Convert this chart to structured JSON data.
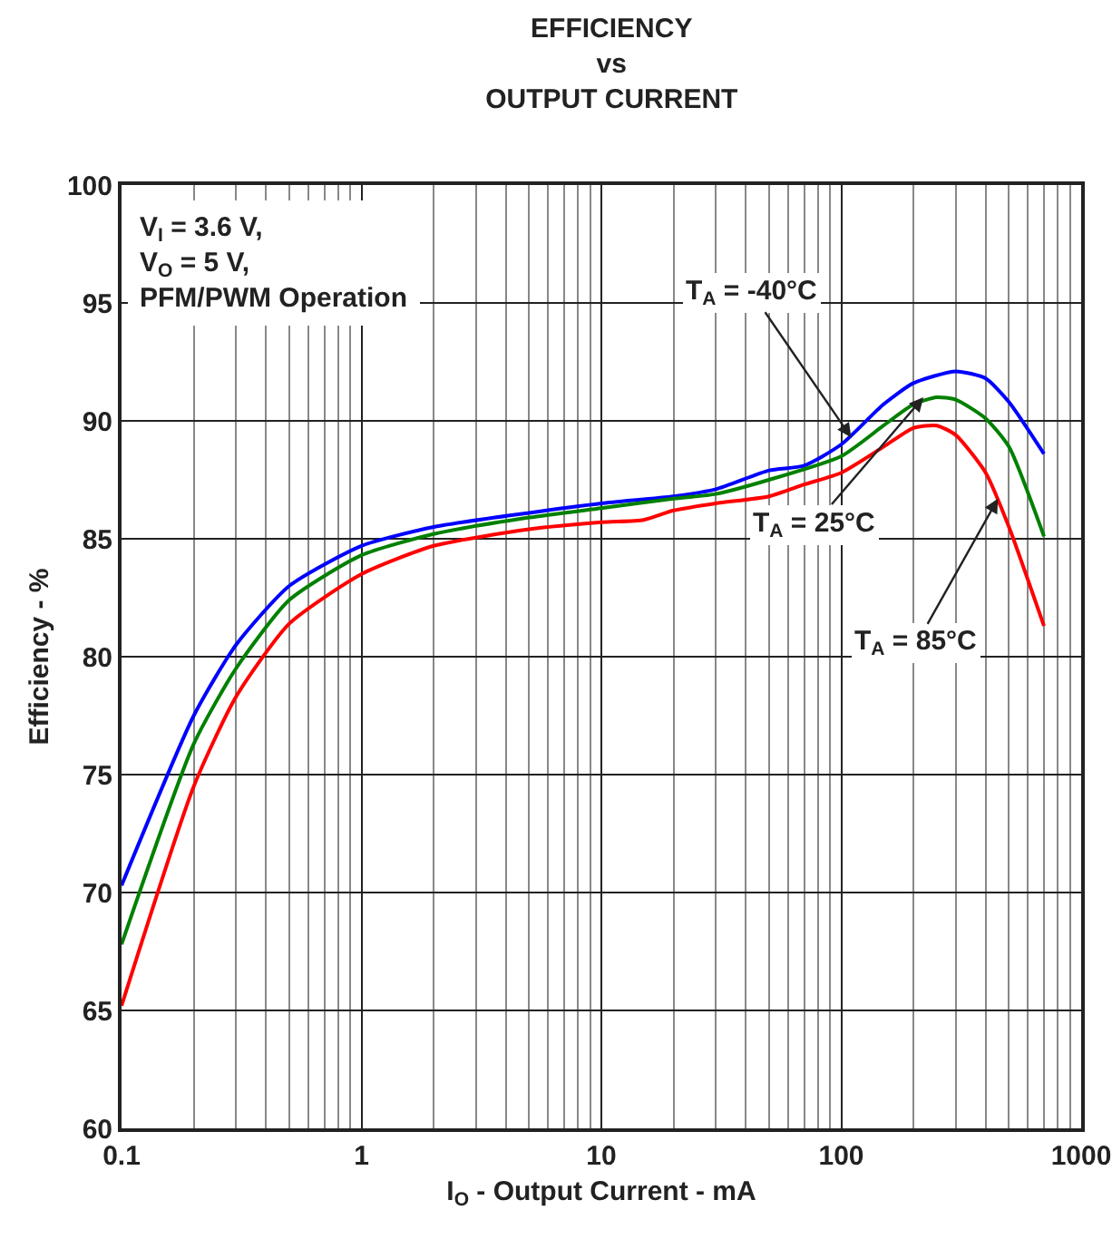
{
  "chart_data": {
    "type": "line",
    "title": "EFFICIENCY\nvs\nOUTPUT CURRENT",
    "xlabel": "I$_{O}$ - Output Current - mA",
    "ylabel": "Efficiency - %",
    "log": "x",
    "xlim": [
      0.1,
      1000
    ],
    "xticks": [
      0.1,
      1,
      10,
      100,
      1000
    ],
    "ylim": [
      60,
      100
    ],
    "yticks": [
      60,
      65,
      70,
      75,
      80,
      85,
      90,
      95,
      100
    ],
    "grid": true,
    "marker": "none",
    "line_style": "solid",
    "series": [
      {
        "color": "#0000ff",
        "x": [
          0.1,
          0.2,
          0.3,
          0.5,
          1,
          2,
          5,
          10,
          20,
          30,
          50,
          70,
          100,
          150,
          200,
          300,
          400,
          500,
          700
        ],
        "values": [
          70.3,
          77.5,
          80.5,
          83,
          84.7,
          85.5,
          86.1,
          86.5,
          86.8,
          87.1,
          87.9,
          88.1,
          89,
          90.7,
          91.6,
          92.1,
          91.8,
          90.8,
          88.6
        ]
      },
      {
        "color": "#008000",
        "x": [
          0.1,
          0.2,
          0.3,
          0.5,
          1,
          2,
          5,
          10,
          20,
          30,
          50,
          100,
          150,
          200,
          250,
          300,
          400,
          500,
          700
        ],
        "values": [
          67.8,
          76.3,
          79.5,
          82.4,
          84.3,
          85.2,
          85.9,
          86.3,
          86.7,
          86.9,
          87.5,
          88.5,
          89.8,
          90.7,
          91,
          90.9,
          90.1,
          88.9,
          85.1
        ]
      },
      {
        "color": "#ff0000",
        "x": [
          0.1,
          0.2,
          0.3,
          0.5,
          1,
          2,
          5,
          10,
          15,
          20,
          30,
          50,
          70,
          100,
          150,
          200,
          250,
          300,
          400,
          500,
          700
        ],
        "values": [
          65.2,
          74.5,
          78.3,
          81.4,
          83.5,
          84.7,
          85.4,
          85.7,
          85.8,
          86.2,
          86.5,
          86.8,
          87.3,
          87.8,
          88.9,
          89.7,
          89.8,
          89.4,
          87.8,
          85.5,
          81.3
        ]
      }
    ],
    "annotations": [
      "V$_{I}$ = 3.6 V,\nV$_{O}$ = 5 V,\nPFM/PWM Operation",
      {
        "text": "T$_{A}$ = -40°C",
        "x": 110,
        "y": 89.3
      },
      {
        "text": "T$_{A}$ = 25°C",
        "x": 220,
        "y": 91
      },
      {
        "text": "T$_{A}$ = 85°C",
        "x": 450,
        "y": 86.7
      }
    ]
  }
}
